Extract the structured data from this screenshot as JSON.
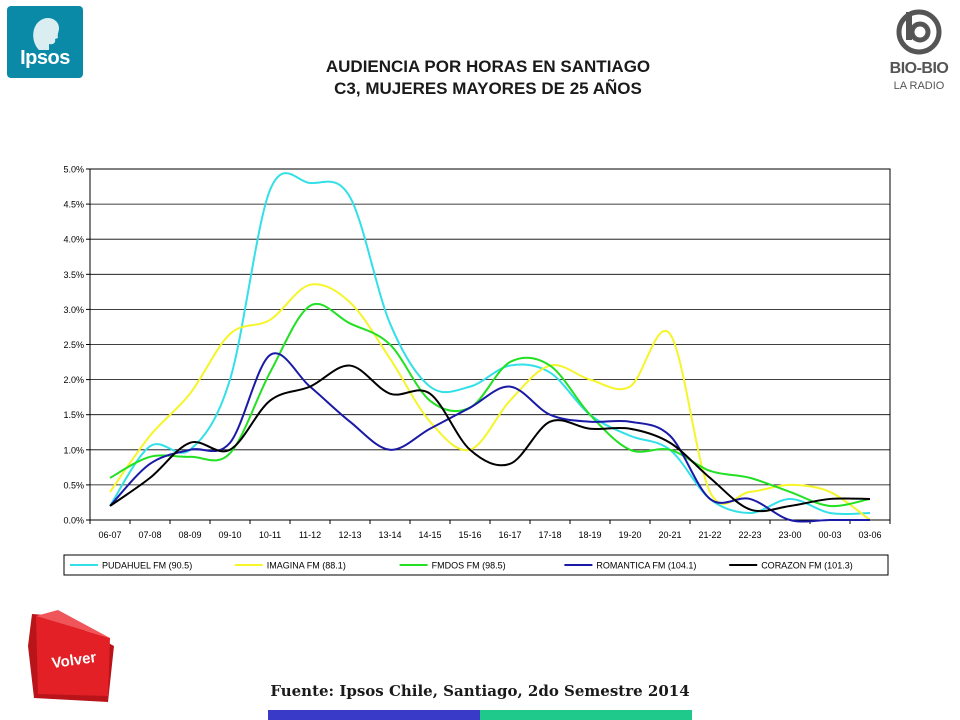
{
  "logos": {
    "ipsos": "Ipsos",
    "biobio": "BIO-BIO",
    "biobio_sub": "LA RADIO"
  },
  "title": {
    "line1": "AUDIENCIA POR HORAS EN SANTIAGO",
    "line2": "C3, MUJERES MAYORES DE 25 AÑOS"
  },
  "volver_label": "Volver",
  "source": "Fuente: Ipsos Chile, Santiago, 2do Semestre 2014",
  "colors": {
    "ipsos": "#0b8aa8",
    "volver": "#e32025",
    "bar_blue": "#3a3ac8",
    "bar_green": "#1fc98c"
  },
  "chart_data": {
    "type": "line",
    "categories": [
      "06-07",
      "07-08",
      "08-09",
      "09-10",
      "10-11",
      "11-12",
      "12-13",
      "13-14",
      "14-15",
      "15-16",
      "16-17",
      "17-18",
      "18-19",
      "19-20",
      "20-21",
      "21-22",
      "22-23",
      "23-00",
      "00-03",
      "03-06"
    ],
    "ylim": [
      0,
      0.05
    ],
    "yticks": [
      "0.0%",
      "0.5%",
      "1.0%",
      "1.5%",
      "2.0%",
      "2.5%",
      "3.0%",
      "3.5%",
      "4.0%",
      "4.5%",
      "5.0%"
    ],
    "grid": true,
    "legend_position": "bottom",
    "series": [
      {
        "name": "PUDAHUEL FM (90.5)",
        "color": "#33e0e8",
        "values": [
          0.002,
          0.0105,
          0.01,
          0.02,
          0.047,
          0.048,
          0.046,
          0.028,
          0.019,
          0.019,
          0.022,
          0.021,
          0.015,
          0.012,
          0.01,
          0.003,
          0.001,
          0.003,
          0.001,
          0.001
        ]
      },
      {
        "name": "IMAGINA FM (88.1)",
        "color": "#f5f52a",
        "values": [
          0.004,
          0.012,
          0.018,
          0.0265,
          0.0285,
          0.0335,
          0.031,
          0.023,
          0.014,
          0.01,
          0.017,
          0.022,
          0.02,
          0.019,
          0.0265,
          0.004,
          0.004,
          0.005,
          0.004,
          0.0
        ]
      },
      {
        "name": "FMDOS FM (98.5)",
        "color": "#22e022",
        "values": [
          0.006,
          0.009,
          0.009,
          0.0095,
          0.021,
          0.0305,
          0.028,
          0.025,
          0.017,
          0.016,
          0.0225,
          0.022,
          0.015,
          0.01,
          0.01,
          0.007,
          0.006,
          0.004,
          0.002,
          0.003
        ]
      },
      {
        "name": "ROMANTICA FM (104.1)",
        "color": "#1a1aa6",
        "values": [
          0.002,
          0.008,
          0.01,
          0.011,
          0.0235,
          0.019,
          0.014,
          0.01,
          0.013,
          0.016,
          0.019,
          0.015,
          0.014,
          0.014,
          0.012,
          0.003,
          0.003,
          0.0,
          0.0,
          0.0
        ]
      },
      {
        "name": "CORAZON FM (101.3)",
        "color": "#000000",
        "values": [
          0.002,
          0.006,
          0.011,
          0.01,
          0.017,
          0.019,
          0.022,
          0.018,
          0.018,
          0.01,
          0.008,
          0.014,
          0.013,
          0.013,
          0.011,
          0.006,
          0.0015,
          0.002,
          0.003,
          0.003
        ]
      }
    ]
  }
}
